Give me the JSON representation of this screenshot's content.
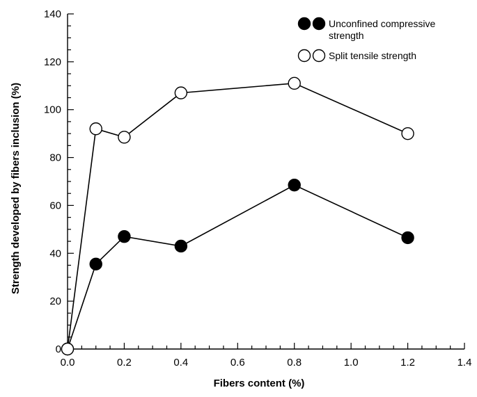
{
  "chart_data": {
    "type": "line",
    "xlabel": "Fibers content (%)",
    "ylabel": "Strength developed by fibers inclusion (%)",
    "xlim": [
      0,
      1.4
    ],
    "ylim": [
      0,
      140
    ],
    "xticks": [
      "0.0",
      "0.2",
      "0.4",
      "0.6",
      "0.8",
      "1.0",
      "1.2",
      "1.4"
    ],
    "yticks": [
      "0",
      "20",
      "40",
      "60",
      "80",
      "100",
      "120",
      "140"
    ],
    "grid": false,
    "legend_position": "top-right",
    "series": [
      {
        "name": [
          "Unconfined compressive",
          "strength"
        ],
        "marker": "filled-circle",
        "x": [
          0,
          0.1,
          0.2,
          0.4,
          0.8,
          1.2
        ],
        "y": [
          0,
          35.5,
          47,
          43,
          68.5,
          46.5
        ]
      },
      {
        "name": [
          "Split tensile strength"
        ],
        "marker": "open-circle",
        "x": [
          0,
          0.1,
          0.2,
          0.4,
          0.8,
          1.2
        ],
        "y": [
          0,
          92,
          88.5,
          107,
          111,
          90
        ]
      }
    ]
  }
}
